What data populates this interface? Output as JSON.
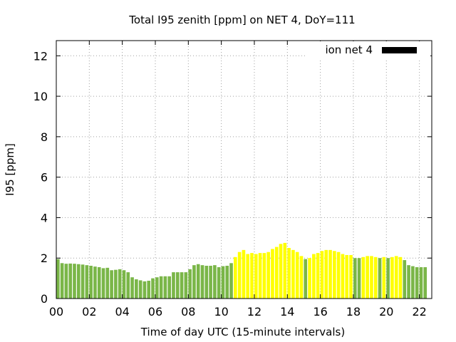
{
  "chart_data": {
    "type": "bar",
    "title": "Total I95 zenith [ppm] on NET 4, DoY=111",
    "xlabel": "Time of day UTC (15-minute intervals)",
    "ylabel": "I95 [ppm]",
    "xlim": [
      0,
      22.75
    ],
    "ylim": [
      0,
      12.75
    ],
    "x_ticks": [
      "00",
      "02",
      "04",
      "06",
      "08",
      "10",
      "12",
      "14",
      "16",
      "18",
      "20",
      "22"
    ],
    "y_ticks": [
      "0",
      "2",
      "4",
      "6",
      "8",
      "10",
      "12"
    ],
    "grid": true,
    "legend": {
      "label": "ion net 4",
      "position": "top-right",
      "color": "#000000"
    },
    "colors": {
      "low": "#7ab648",
      "high": "#ffff00"
    },
    "interval_hours": 0.25,
    "values": [
      1.95,
      1.75,
      1.72,
      1.73,
      1.72,
      1.7,
      1.68,
      1.65,
      1.62,
      1.58,
      1.55,
      1.5,
      1.52,
      1.4,
      1.42,
      1.45,
      1.4,
      1.3,
      1.05,
      0.95,
      0.9,
      0.85,
      0.88,
      1.0,
      1.05,
      1.1,
      1.1,
      1.1,
      1.3,
      1.3,
      1.3,
      1.3,
      1.45,
      1.65,
      1.7,
      1.65,
      1.62,
      1.62,
      1.65,
      1.55,
      1.6,
      1.62,
      1.75,
      2.05,
      2.3,
      2.4,
      2.2,
      2.25,
      2.2,
      2.25,
      2.25,
      2.3,
      2.45,
      2.55,
      2.7,
      2.75,
      2.5,
      2.4,
      2.3,
      2.1,
      1.95,
      2.0,
      2.2,
      2.25,
      2.35,
      2.4,
      2.4,
      2.35,
      2.3,
      2.2,
      2.15,
      2.15,
      2.0,
      2.0,
      2.05,
      2.1,
      2.1,
      2.05,
      2.0,
      2.05,
      2.0,
      2.05,
      2.1,
      2.05,
      1.9,
      1.65,
      1.6,
      1.55,
      1.55,
      1.55
    ],
    "bar_colors": [
      "low",
      "low",
      "low",
      "low",
      "low",
      "low",
      "low",
      "low",
      "low",
      "low",
      "low",
      "low",
      "low",
      "low",
      "low",
      "low",
      "low",
      "low",
      "low",
      "low",
      "low",
      "low",
      "low",
      "low",
      "low",
      "low",
      "low",
      "low",
      "low",
      "low",
      "low",
      "low",
      "low",
      "low",
      "low",
      "low",
      "low",
      "low",
      "low",
      "low",
      "low",
      "low",
      "low",
      "high",
      "high",
      "high",
      "high",
      "high",
      "high",
      "high",
      "high",
      "high",
      "high",
      "high",
      "high",
      "high",
      "high",
      "high",
      "high",
      "high",
      "low",
      "high",
      "high",
      "high",
      "high",
      "high",
      "high",
      "high",
      "high",
      "high",
      "high",
      "high",
      "low",
      "low",
      "high",
      "high",
      "high",
      "high",
      "low",
      "high",
      "low",
      "high",
      "high",
      "high",
      "low",
      "low",
      "low",
      "low",
      "low",
      "low"
    ]
  }
}
